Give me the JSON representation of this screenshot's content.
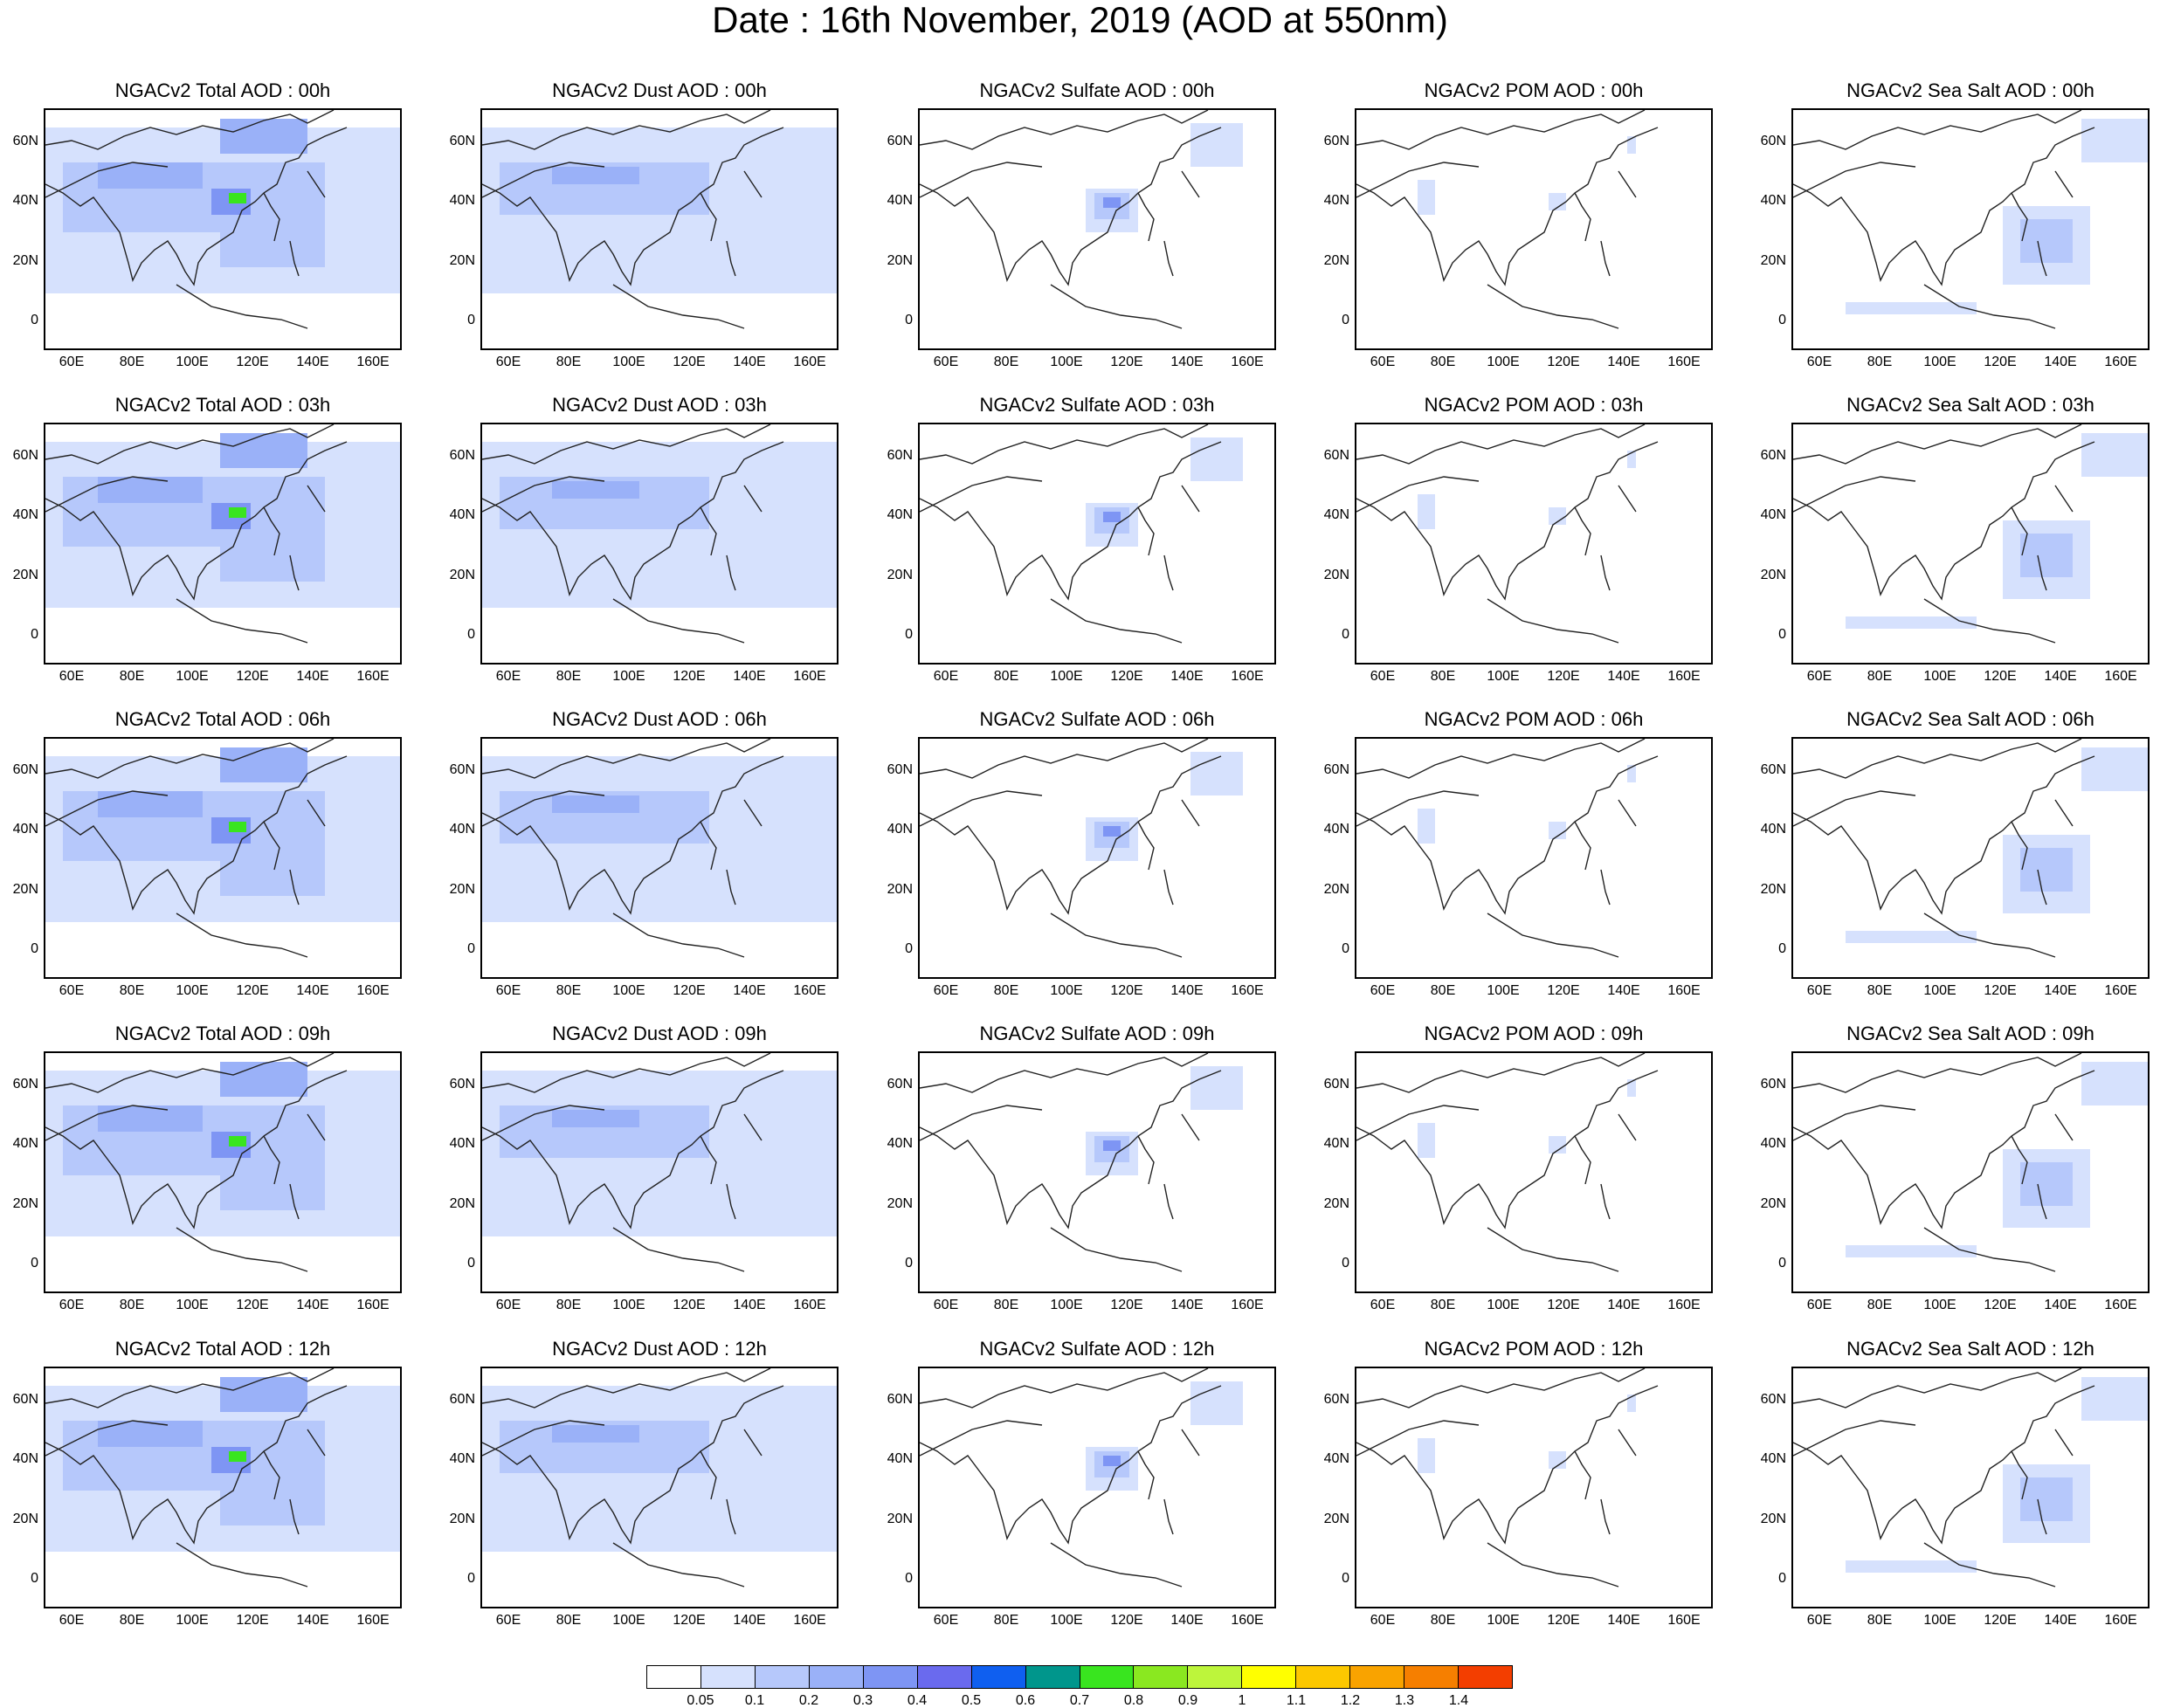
{
  "main_title": "Date : 16th November, 2019 (AOD at 550nm)",
  "panels": [
    [
      "NGACv2 Total AOD : 00h",
      "NGACv2 Dust AOD : 00h",
      "NGACv2 Sulfate AOD : 00h",
      "NGACv2 POM AOD : 00h",
      "NGACv2 Sea Salt AOD : 00h"
    ],
    [
      "NGACv2 Total AOD : 03h",
      "NGACv2 Dust AOD : 03h",
      "NGACv2 Sulfate AOD : 03h",
      "NGACv2 POM AOD : 03h",
      "NGACv2 Sea Salt AOD : 03h"
    ],
    [
      "NGACv2 Total AOD : 06h",
      "NGACv2 Dust AOD : 06h",
      "NGACv2 Sulfate AOD : 06h",
      "NGACv2 POM AOD : 06h",
      "NGACv2 Sea Salt AOD : 06h"
    ],
    [
      "NGACv2 Total AOD : 09h",
      "NGACv2 Dust AOD : 09h",
      "NGACv2 Sulfate AOD : 09h",
      "NGACv2 POM AOD : 09h",
      "NGACv2 Sea Salt  AOD : 09h"
    ],
    [
      "NGACv2 Total AOD  : 12h",
      "NGACv2 Dust AOD : 12h",
      "NGACv2 Sulfate AOD : 12h",
      "NGACv2 POM  AOD : 12h",
      "NGACv2 Sea Salt  AOD : 12h"
    ]
  ],
  "lat_ticks": [
    "60N",
    "40N",
    "20N",
    "0"
  ],
  "lon_ticks": [
    "60E",
    "80E",
    "100E",
    "120E",
    "140E",
    "160E"
  ],
  "colorbar": {
    "colors": [
      "#ffffff",
      "#d6e1fd",
      "#b6c8fb",
      "#9ab1f8",
      "#7e95f4",
      "#6a6aee",
      "#0f5ff0",
      "#00968c",
      "#39e51f",
      "#8ae820",
      "#bdf53b",
      "#ffff00",
      "#fcc800",
      "#f9a300",
      "#f67f00",
      "#f33e00"
    ],
    "labels": [
      "0.05",
      "0.1",
      "0.2",
      "0.3",
      "0.4",
      "0.5",
      "0.6",
      "0.7",
      "0.8",
      "0.9",
      "1",
      "1.1",
      "1.2",
      "1.3",
      "1.4"
    ]
  }
}
